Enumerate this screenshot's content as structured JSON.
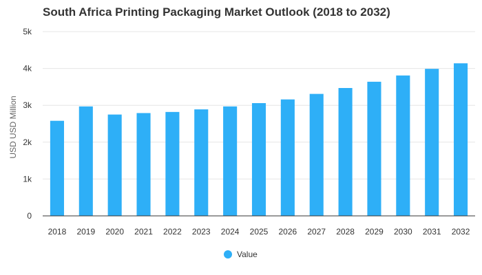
{
  "chart_data": {
    "type": "bar",
    "title": "South Africa Printing Packaging Market Outlook (2018 to 2032)",
    "xlabel": "",
    "ylabel": "USD USD Million",
    "ylim": [
      0,
      5000
    ],
    "yticks": [
      0,
      1000,
      2000,
      3000,
      4000,
      5000
    ],
    "ytick_labels": [
      "0",
      "1k",
      "2k",
      "3k",
      "4k",
      "5k"
    ],
    "grid": true,
    "legend_position": "bottom-center",
    "categories": [
      "2018",
      "2019",
      "2020",
      "2021",
      "2022",
      "2023",
      "2024",
      "2025",
      "2026",
      "2027",
      "2028",
      "2029",
      "2030",
      "2031",
      "2032"
    ],
    "series": [
      {
        "name": "Value",
        "color": "#2eaff7",
        "values": [
          2580,
          2970,
          2750,
          2790,
          2820,
          2890,
          2970,
          3060,
          3160,
          3310,
          3470,
          3640,
          3810,
          3990,
          4140
        ]
      }
    ]
  }
}
